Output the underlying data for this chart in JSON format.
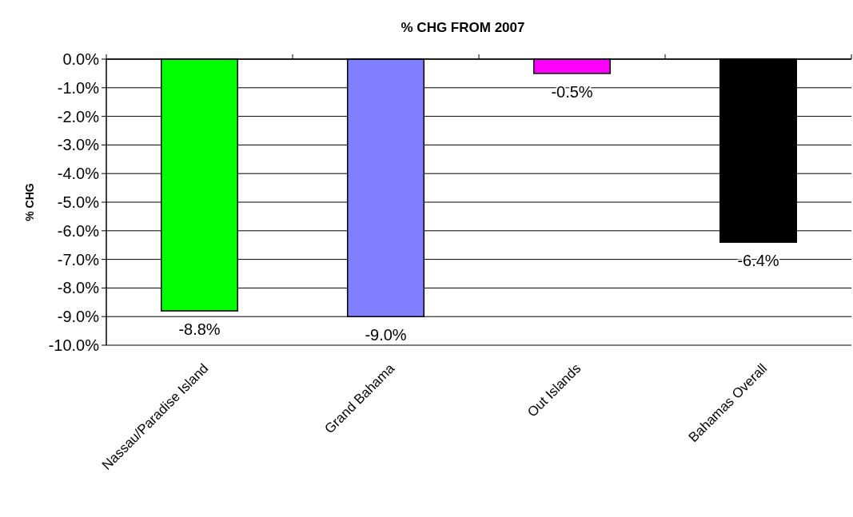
{
  "chart_data": {
    "type": "bar",
    "title": "% CHG FROM 2007",
    "ylabel": "% CHG",
    "categories": [
      "Nassau/Paradise Island",
      "Grand Bahama",
      "Out Islands",
      "Bahamas Overall"
    ],
    "values": [
      -8.8,
      -9.0,
      -0.5,
      -6.4
    ],
    "colors": [
      "#00ff00",
      "#8080ff",
      "#ff00ff",
      "#000000"
    ],
    "value_labels": [
      "-8.8%",
      "-9.0%",
      "-0.5%",
      "-6.4%"
    ],
    "ylim": [
      -10,
      0
    ],
    "yticks": [
      {
        "value": 0,
        "label": "0.0%"
      },
      {
        "value": -1,
        "label": "-1.0%"
      },
      {
        "value": -2,
        "label": "-2.0%"
      },
      {
        "value": -3,
        "label": "-3.0%"
      },
      {
        "value": -4,
        "label": "-4.0%"
      },
      {
        "value": -5,
        "label": "-5.0%"
      },
      {
        "value": -6,
        "label": "-6.0%"
      },
      {
        "value": -7,
        "label": "-7.0%"
      },
      {
        "value": -8,
        "label": "-8.0%"
      },
      {
        "value": -9,
        "label": "-9.0%"
      },
      {
        "value": -10,
        "label": "-10.0%"
      }
    ],
    "grid": "y"
  }
}
